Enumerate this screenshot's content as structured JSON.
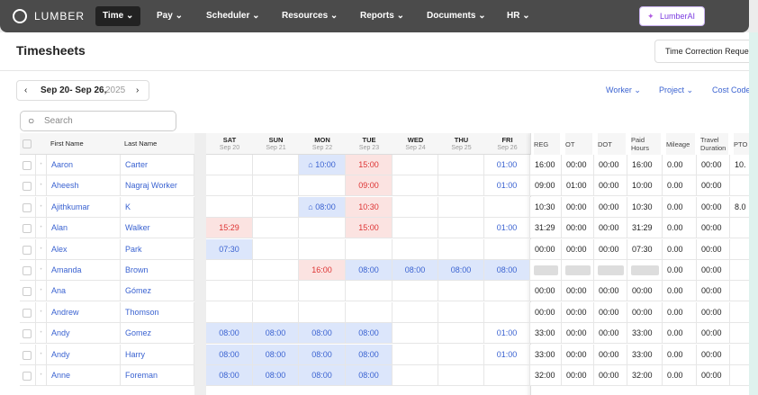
{
  "nav": {
    "brand": "LUMBER",
    "items": [
      "Time",
      "Pay",
      "Scheduler",
      "Resources",
      "Reports",
      "Documents",
      "HR"
    ],
    "active": 0,
    "ai_button": "LumberAI"
  },
  "header": {
    "title": "Timesheets",
    "button": "Time Correction Reques"
  },
  "toolbar": {
    "range": "Sep 20- Sep 26,",
    "year": "2025",
    "filters": [
      "Worker",
      "Project",
      "Cost Code"
    ],
    "search": "Search"
  },
  "table": {
    "name_columns": [
      "First Name",
      "Last Name"
    ],
    "days": [
      {
        "day": "SAT",
        "date": "Sep 20"
      },
      {
        "day": "SUN",
        "date": "Sep 21"
      },
      {
        "day": "MON",
        "date": "Sep 22"
      },
      {
        "day": "TUE",
        "date": "Sep 23"
      },
      {
        "day": "WED",
        "date": "Sep 24"
      },
      {
        "day": "THU",
        "date": "Sep 25"
      },
      {
        "day": "FRI",
        "date": "Sep 26"
      }
    ],
    "summary_columns": [
      "REG",
      "OT",
      "DOT",
      "Paid Hours",
      "Mileage",
      "Travel Duration",
      "PTO"
    ],
    "rows": [
      {
        "first": "Aaron",
        "last": "Carter",
        "days": [
          null,
          null,
          {
            "text": "10:00",
            "kind": "icon"
          },
          {
            "text": "15:00",
            "kind": "red"
          },
          null,
          null,
          {
            "text": "01:00",
            "kind": "plain"
          }
        ],
        "summary": [
          "16:00",
          "00:00",
          "00:00",
          "16:00",
          "0.00",
          "00:00",
          "10."
        ]
      },
      {
        "first": "Aheesh",
        "last": "Nagraj Worker",
        "days": [
          null,
          null,
          null,
          {
            "text": "09:00",
            "kind": "red"
          },
          null,
          null,
          {
            "text": "01:00",
            "kind": "plain"
          }
        ],
        "summary": [
          "09:00",
          "01:00",
          "00:00",
          "10:00",
          "0.00",
          "00:00",
          null
        ]
      },
      {
        "first": "Ajithkumar",
        "last": "K",
        "days": [
          null,
          null,
          {
            "text": "08:00",
            "kind": "icon"
          },
          {
            "text": "10:30",
            "kind": "red"
          },
          null,
          null,
          null
        ],
        "summary": [
          "10:30",
          "00:00",
          "00:00",
          "10:30",
          "0.00",
          "00:00",
          "8.0"
        ]
      },
      {
        "first": "Alan",
        "last": "Walker",
        "days": [
          {
            "text": "15:29",
            "kind": "red"
          },
          null,
          null,
          {
            "text": "15:00",
            "kind": "red"
          },
          null,
          null,
          {
            "text": "01:00",
            "kind": "plain"
          }
        ],
        "summary": [
          "31:29",
          "00:00",
          "00:00",
          "31:29",
          "0.00",
          "00:00",
          null
        ]
      },
      {
        "first": "Alex",
        "last": "Park",
        "days": [
          {
            "text": "07:30",
            "kind": "blue"
          },
          null,
          null,
          null,
          null,
          null,
          null
        ],
        "summary": [
          "00:00",
          "00:00",
          "00:00",
          "07:30",
          "0.00",
          "00:00",
          null
        ]
      },
      {
        "first": "Amanda",
        "last": "Brown",
        "days": [
          null,
          null,
          {
            "text": "16:00",
            "kind": "red"
          },
          {
            "text": "08:00",
            "kind": "blue"
          },
          {
            "text": "08:00",
            "kind": "blue"
          },
          {
            "text": "08:00",
            "kind": "blue"
          },
          {
            "text": "08:00",
            "kind": "blue"
          }
        ],
        "summary": [
          null,
          null,
          null,
          null,
          "0.00",
          "00:00",
          null
        ]
      },
      {
        "first": "Ana",
        "last": "Gómez",
        "days": [
          null,
          null,
          null,
          null,
          null,
          null,
          null
        ],
        "summary": [
          "00:00",
          "00:00",
          "00:00",
          "00:00",
          "0.00",
          "00:00",
          null
        ]
      },
      {
        "first": "Andrew",
        "last": "Thomson",
        "days": [
          null,
          null,
          null,
          null,
          null,
          null,
          null
        ],
        "summary": [
          "00:00",
          "00:00",
          "00:00",
          "00:00",
          "0.00",
          "00:00",
          null
        ]
      },
      {
        "first": "Andy",
        "last": "Gomez",
        "days": [
          {
            "text": "08:00",
            "kind": "blue"
          },
          {
            "text": "08:00",
            "kind": "blue"
          },
          {
            "text": "08:00",
            "kind": "blue"
          },
          {
            "text": "08:00",
            "kind": "blue"
          },
          null,
          null,
          {
            "text": "01:00",
            "kind": "plain"
          }
        ],
        "summary": [
          "33:00",
          "00:00",
          "00:00",
          "33:00",
          "0.00",
          "00:00",
          null
        ]
      },
      {
        "first": "Andy",
        "last": "Harry",
        "days": [
          {
            "text": "08:00",
            "kind": "blue"
          },
          {
            "text": "08:00",
            "kind": "blue"
          },
          {
            "text": "08:00",
            "kind": "blue"
          },
          {
            "text": "08:00",
            "kind": "blue"
          },
          null,
          null,
          {
            "text": "01:00",
            "kind": "plain"
          }
        ],
        "summary": [
          "33:00",
          "00:00",
          "00:00",
          "33:00",
          "0.00",
          "00:00",
          null
        ]
      },
      {
        "first": "Anne",
        "last": "Foreman",
        "days": [
          {
            "text": "08:00",
            "kind": "blue"
          },
          {
            "text": "08:00",
            "kind": "blue"
          },
          {
            "text": "08:00",
            "kind": "blue"
          },
          {
            "text": "08:00",
            "kind": "blue"
          },
          null,
          null,
          null
        ],
        "summary": [
          "32:00",
          "00:00",
          "00:00",
          "32:00",
          "0.00",
          "00:00",
          null
        ]
      }
    ]
  }
}
